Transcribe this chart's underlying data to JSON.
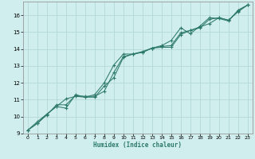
{
  "xlabel": "Humidex (Indice chaleur)",
  "ylabel": "",
  "bg_color": "#d1eeee",
  "grid_color": "#aed4d4",
  "line_color": "#2d7a6a",
  "xlim": [
    -0.5,
    23.5
  ],
  "ylim": [
    9,
    16.8
  ],
  "xticks": [
    0,
    1,
    2,
    3,
    4,
    5,
    6,
    7,
    8,
    9,
    10,
    11,
    12,
    13,
    14,
    15,
    16,
    17,
    18,
    19,
    20,
    21,
    22,
    23
  ],
  "yticks": [
    9,
    10,
    11,
    12,
    13,
    14,
    15,
    16
  ],
  "line1_x": [
    0,
    1,
    2,
    3,
    4,
    5,
    6,
    7,
    8,
    9,
    10,
    11,
    12,
    13,
    14,
    15,
    16,
    17,
    18,
    19,
    20,
    21,
    22,
    23
  ],
  "line1_y": [
    9.2,
    9.6,
    10.15,
    10.6,
    11.05,
    11.2,
    11.15,
    11.15,
    11.8,
    12.3,
    13.5,
    13.7,
    13.8,
    14.05,
    14.1,
    14.1,
    14.85,
    15.1,
    15.25,
    15.75,
    15.85,
    15.7,
    16.2,
    16.6
  ],
  "line2_x": [
    0,
    1,
    2,
    3,
    4,
    5,
    6,
    7,
    8,
    9,
    10,
    11,
    12,
    13,
    14,
    15,
    16,
    17,
    18,
    19,
    20,
    21,
    22,
    23
  ],
  "line2_y": [
    9.2,
    9.7,
    10.15,
    10.6,
    10.5,
    11.3,
    11.15,
    11.3,
    12.0,
    13.05,
    13.7,
    13.7,
    13.85,
    14.05,
    14.2,
    14.5,
    15.25,
    14.9,
    15.35,
    15.85,
    15.8,
    15.65,
    16.3,
    16.6
  ],
  "line3_x": [
    0,
    1,
    2,
    3,
    4,
    5,
    6,
    7,
    8,
    9,
    10,
    11,
    12,
    13,
    14,
    15,
    16,
    17,
    18,
    19,
    20,
    21,
    22,
    23
  ],
  "line3_y": [
    9.2,
    9.6,
    10.1,
    10.7,
    10.7,
    11.25,
    11.2,
    11.2,
    11.5,
    12.6,
    13.55,
    13.7,
    13.8,
    14.05,
    14.15,
    14.2,
    14.95,
    15.1,
    15.3,
    15.5,
    15.85,
    15.7,
    16.25,
    16.6
  ]
}
